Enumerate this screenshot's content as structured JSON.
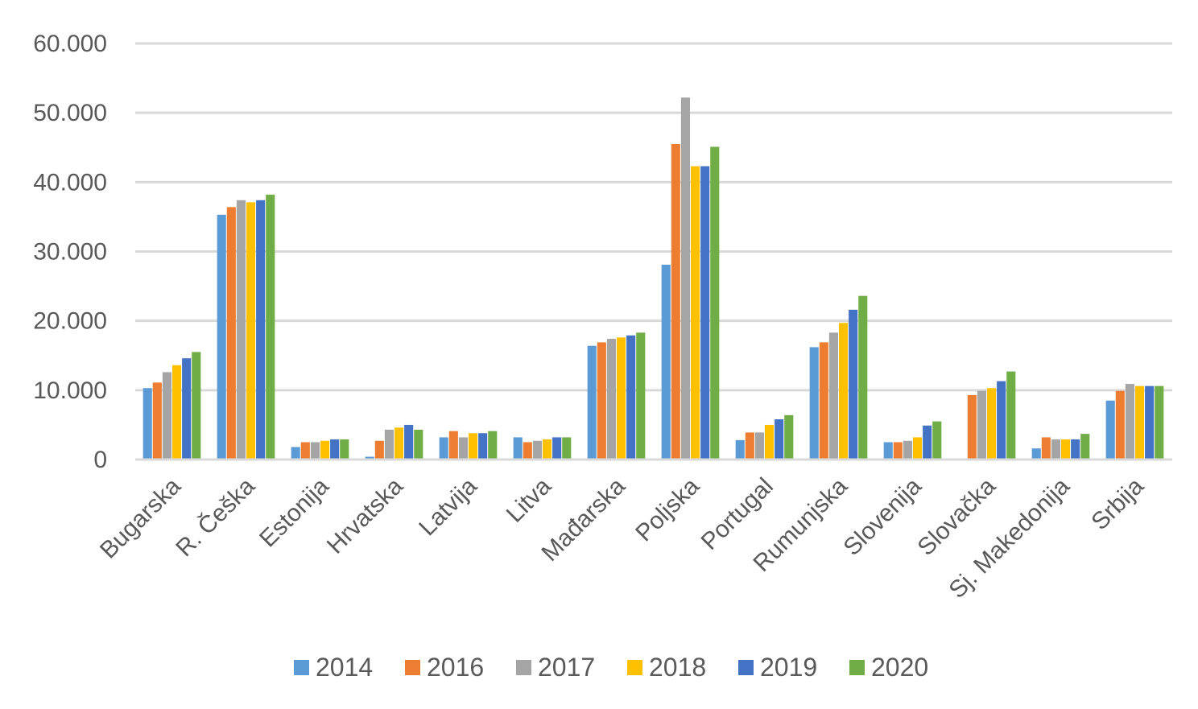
{
  "chart_data": {
    "type": "bar",
    "title": "",
    "xlabel": "",
    "ylabel": "",
    "ylim": [
      0,
      60000
    ],
    "yticks": [
      0,
      10000,
      20000,
      30000,
      40000,
      50000,
      60000
    ],
    "ytick_labels": [
      "0",
      "10.000",
      "20.000",
      "30.000",
      "40.000",
      "50.000",
      "60.000"
    ],
    "grid": true,
    "legend_position": "bottom",
    "categories": [
      "Bugarska",
      "R. Češka",
      "Estonija",
      "Hrvatska",
      "Latvija",
      "Litva",
      "Mađarska",
      "Poljska",
      "Portugal",
      "Rumunjska",
      "Slovenija",
      "Slovačka",
      "Sj. Makedonija",
      "Srbija"
    ],
    "series": [
      {
        "name": "2014",
        "color": "#5B9BD5",
        "values": [
          10300,
          35300,
          1800,
          400,
          3200,
          3200,
          16400,
          28100,
          2800,
          16200,
          2500,
          0,
          1600,
          8500
        ]
      },
      {
        "name": "2016",
        "color": "#ED7D31",
        "values": [
          11100,
          36400,
          2500,
          2700,
          4100,
          2500,
          16900,
          45500,
          3900,
          16900,
          2500,
          9300,
          3200,
          9900
        ]
      },
      {
        "name": "2017",
        "color": "#A5A5A5",
        "values": [
          12600,
          37400,
          2500,
          4300,
          3200,
          2700,
          17400,
          52200,
          3900,
          18300,
          2700,
          9900,
          2900,
          10900
        ]
      },
      {
        "name": "2018",
        "color": "#FFC000",
        "values": [
          13600,
          37100,
          2700,
          4600,
          3800,
          2900,
          17600,
          42300,
          5000,
          19700,
          3200,
          10300,
          2900,
          10600
        ]
      },
      {
        "name": "2019",
        "color": "#4472C4",
        "values": [
          14600,
          37400,
          2900,
          5000,
          3800,
          3200,
          17900,
          42300,
          5800,
          21600,
          4900,
          11300,
          2900,
          10600
        ]
      },
      {
        "name": "2020",
        "color": "#70AD47",
        "values": [
          15500,
          38200,
          2900,
          4300,
          4100,
          3200,
          18300,
          45100,
          6400,
          23600,
          5500,
          12700,
          3700,
          10600
        ]
      }
    ]
  }
}
